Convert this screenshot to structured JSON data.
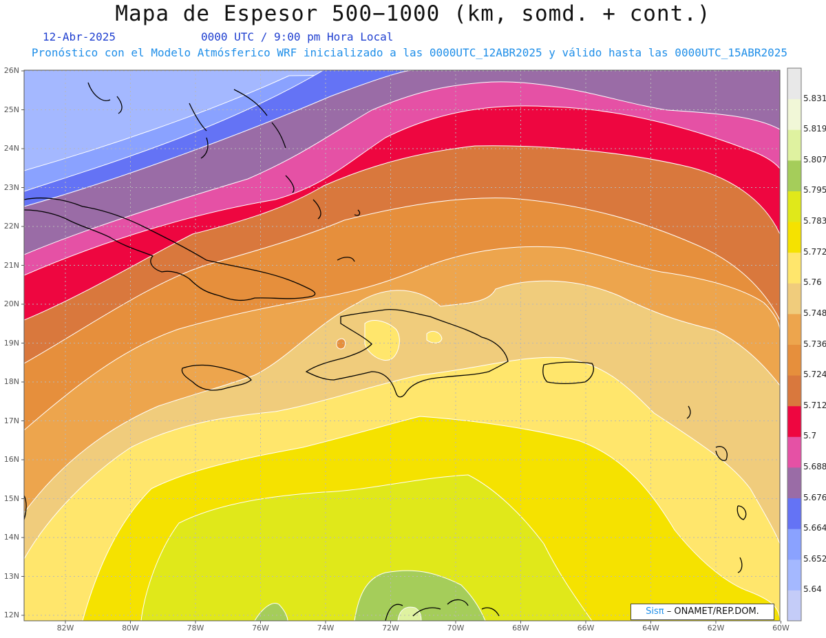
{
  "header": {
    "title": "Mapa de Espesor 500−1000 (km, somd. + cont.)",
    "date": "12-Abr-2025",
    "time": "0000 UTC / 9:00 pm Hora Local",
    "description": "Pronóstico con el Modelo Atmósferico WRF inicializado a las 0000UTC_12ABR2025 y válido hasta las  0000UTC_15ABR2025"
  },
  "axes": {
    "lat_labels": [
      "26N",
      "25N",
      "24N",
      "23N",
      "22N",
      "21N",
      "20N",
      "19N",
      "18N",
      "17N",
      "16N",
      "15N",
      "14N",
      "13N",
      "12N"
    ],
    "lon_labels": [
      "82W",
      "80W",
      "78W",
      "76W",
      "74W",
      "72W",
      "70W",
      "68W",
      "66W",
      "64W",
      "62W",
      "60W"
    ],
    "grid": "dotted"
  },
  "colorbar": {
    "labels": [
      "5.831",
      "5.819",
      "5.807",
      "5.795",
      "5.783",
      "5.772",
      "5.76",
      "5.748",
      "5.736",
      "5.724",
      "5.712",
      "5.7",
      "5.688",
      "5.676",
      "5.664",
      "5.652",
      "5.64"
    ],
    "colors": [
      "#c4ccf8",
      "#a4b8ff",
      "#8aa2ff",
      "#6473f5",
      "#9a6ca6",
      "#e551a5",
      "#ee0640",
      "#d9783d",
      "#e68f3c",
      "#eda54d",
      "#f0cc7c",
      "#ffe66c",
      "#f5e200",
      "#e0e81a",
      "#a5cd5a",
      "#dff2a0",
      "#f1f7d7",
      "#e8e8e8"
    ]
  },
  "map": {
    "bands": [
      {
        "value": "5.652",
        "color": "#8aa2ff"
      },
      {
        "value": "5.664",
        "color": "#6473f5"
      },
      {
        "value": "5.676",
        "color": "#9a6ca6"
      },
      {
        "value": "5.688",
        "color": "#e551a5"
      },
      {
        "value": "5.700",
        "color": "#ee0640"
      },
      {
        "value": "5.712",
        "color": "#d9783d"
      },
      {
        "value": "5.724",
        "color": "#e68f3c"
      },
      {
        "value": "5.736",
        "color": "#eda54d"
      },
      {
        "value": "5.748",
        "color": "#f0cc7c"
      },
      {
        "value": "5.760",
        "color": "#ffe66c"
      },
      {
        "value": "5.772",
        "color": "#f5e200"
      },
      {
        "value": "5.783",
        "color": "#e0e81a"
      },
      {
        "value": "5.795",
        "color": "#a5cd5a"
      }
    ]
  },
  "credit": {
    "brand": "Sisπ",
    "text": "– ONAMET/REP.DOM."
  }
}
